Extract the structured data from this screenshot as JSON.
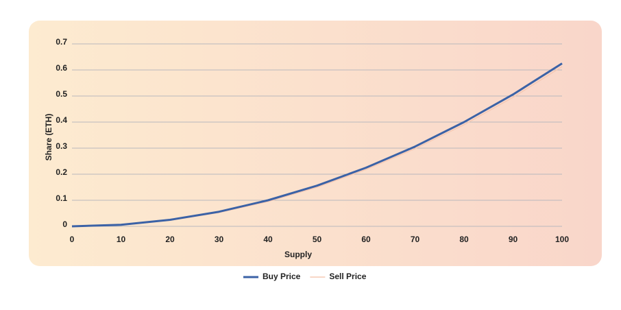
{
  "chart_data": {
    "type": "line",
    "x_label": "Supply",
    "y_label": "Share (ETH)",
    "x": [
      0,
      10,
      20,
      30,
      40,
      50,
      60,
      70,
      80,
      90,
      100
    ],
    "series": [
      {
        "name": "Buy Price",
        "color": "#3b62a6",
        "values": [
          0,
          0.006,
          0.025,
          0.056,
          0.1,
          0.156,
          0.225,
          0.306,
          0.4,
          0.506,
          0.625
        ]
      },
      {
        "name": "Sell Price",
        "color": "#f6c9b4",
        "values": [
          0,
          0.005,
          0.023,
          0.053,
          0.095,
          0.15,
          0.218,
          0.298,
          0.39,
          0.495,
          0.613
        ]
      }
    ],
    "xlim": [
      0,
      100
    ],
    "xticks": [
      0,
      10,
      20,
      30,
      40,
      50,
      60,
      70,
      80,
      90,
      100
    ],
    "ylim": [
      0,
      0.7
    ],
    "yticks": [
      0,
      0.1,
      0.2,
      0.3,
      0.4,
      0.5,
      0.6,
      0.7
    ],
    "grid": true,
    "legend": "bottom"
  }
}
